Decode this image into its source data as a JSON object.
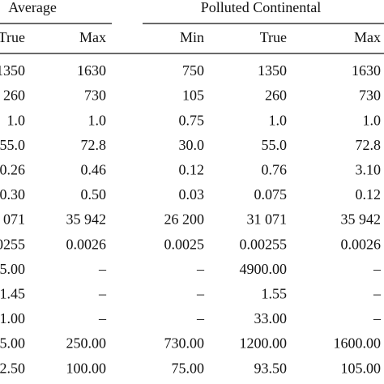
{
  "table": {
    "groups": [
      "Average",
      "Polluted Continental"
    ],
    "columns": [
      "True",
      "Max",
      "Min",
      "True",
      "Max"
    ],
    "rows": [
      [
        "1350",
        "1630",
        "750",
        "1350",
        "1630"
      ],
      [
        "260",
        "730",
        "105",
        "260",
        "730"
      ],
      [
        "1.0",
        "1.0",
        "0.75",
        "1.0",
        "1.0"
      ],
      [
        "55.0",
        "72.8",
        "30.0",
        "55.0",
        "72.8"
      ],
      [
        "0.26",
        "0.46",
        "0.12",
        "0.76",
        "3.10"
      ],
      [
        "0.30",
        "0.50",
        "0.03",
        "0.075",
        "0.12"
      ],
      [
        "071",
        "35 942",
        "26 200",
        "31 071",
        "35 942"
      ],
      [
        "0255",
        "0.0026",
        "0.0025",
        "0.00255",
        "0.0026"
      ],
      [
        "5.00",
        "–",
        "–",
        "4900.00",
        "–"
      ],
      [
        "1.45",
        "–",
        "–",
        "1.55",
        "–"
      ],
      [
        "1.00",
        "–",
        "–",
        "33.00",
        "–"
      ],
      [
        "5.00",
        "250.00",
        "730.00",
        "1200.00",
        "1600.00"
      ],
      [
        "2.50",
        "100.00",
        "75.00",
        "93.50",
        "105.00"
      ]
    ]
  }
}
